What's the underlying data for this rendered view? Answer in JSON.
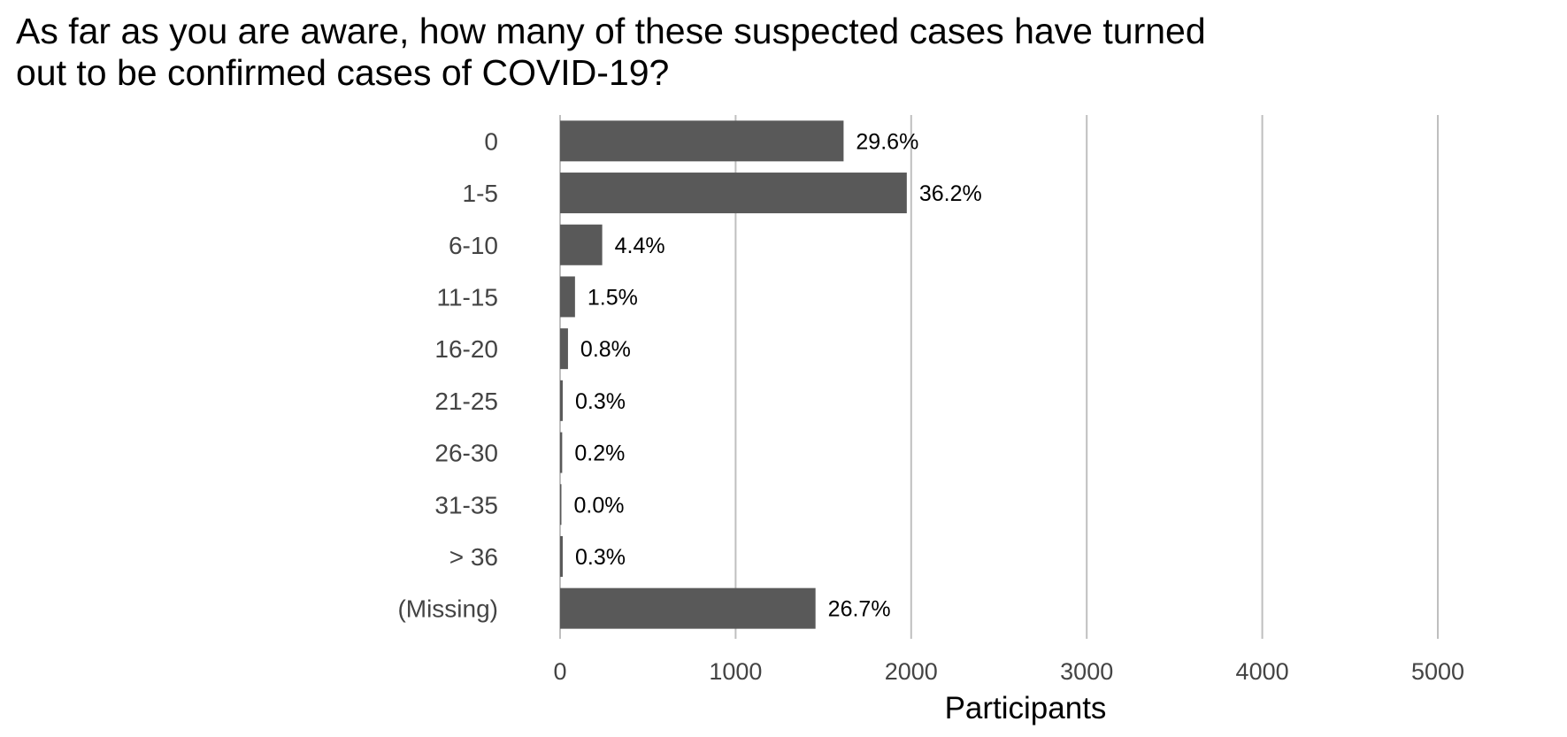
{
  "chart_data": {
    "type": "bar",
    "orientation": "horizontal",
    "title": "As far as you are aware, how many of these suspected cases have turned\nout to be confirmed cases of COVID-19?",
    "xlabel": "Participants",
    "ylabel": "",
    "xlim": [
      0,
      5000
    ],
    "xticks": [
      0,
      1000,
      2000,
      3000,
      4000,
      5000
    ],
    "grid": "vertical",
    "bar_color": "#595959",
    "grid_color": "#bfbfbf",
    "categories": [
      "0",
      "1-5",
      "6-10",
      "11-15",
      "16-20",
      "21-25",
      "26-30",
      "31-35",
      "> 36",
      "(Missing)"
    ],
    "values": [
      1615,
      1975,
      240,
      85,
      45,
      15,
      12,
      2,
      15,
      1455
    ],
    "labels": [
      "29.6%",
      "36.2%",
      "4.4%",
      "1.5%",
      "0.8%",
      "0.3%",
      "0.2%",
      "0.0%",
      "0.3%",
      "26.7%"
    ]
  }
}
